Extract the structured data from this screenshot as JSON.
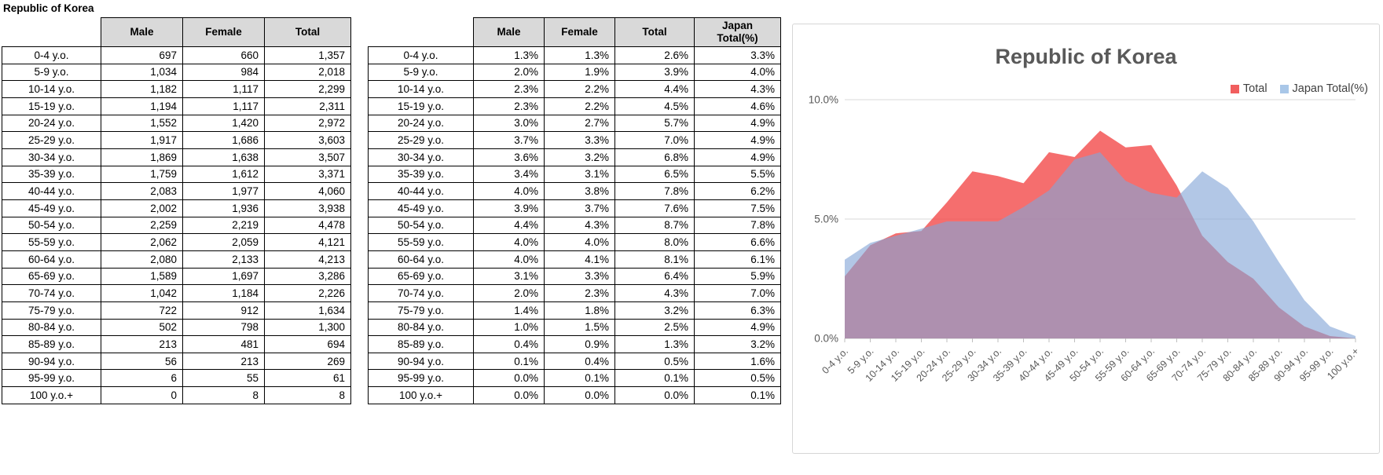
{
  "sheet_title": "Republic of Korea",
  "counts_table": {
    "headers": [
      "Male",
      "Female",
      "Total"
    ],
    "rows": [
      [
        "0-4 y.o.",
        "697",
        "660",
        "1,357"
      ],
      [
        "5-9 y.o.",
        "1,034",
        "984",
        "2,018"
      ],
      [
        "10-14 y.o.",
        "1,182",
        "1,117",
        "2,299"
      ],
      [
        "15-19 y.o.",
        "1,194",
        "1,117",
        "2,311"
      ],
      [
        "20-24 y.o.",
        "1,552",
        "1,420",
        "2,972"
      ],
      [
        "25-29 y.o.",
        "1,917",
        "1,686",
        "3,603"
      ],
      [
        "30-34 y.o.",
        "1,869",
        "1,638",
        "3,507"
      ],
      [
        "35-39 y.o.",
        "1,759",
        "1,612",
        "3,371"
      ],
      [
        "40-44 y.o.",
        "2,083",
        "1,977",
        "4,060"
      ],
      [
        "45-49 y.o.",
        "2,002",
        "1,936",
        "3,938"
      ],
      [
        "50-54 y.o.",
        "2,259",
        "2,219",
        "4,478"
      ],
      [
        "55-59 y.o.",
        "2,062",
        "2,059",
        "4,121"
      ],
      [
        "60-64 y.o.",
        "2,080",
        "2,133",
        "4,213"
      ],
      [
        "65-69 y.o.",
        "1,589",
        "1,697",
        "3,286"
      ],
      [
        "70-74 y.o.",
        "1,042",
        "1,184",
        "2,226"
      ],
      [
        "75-79 y.o.",
        "722",
        "912",
        "1,634"
      ],
      [
        "80-84 y.o.",
        "502",
        "798",
        "1,300"
      ],
      [
        "85-89 y.o.",
        "213",
        "481",
        "694"
      ],
      [
        "90-94 y.o.",
        "56",
        "213",
        "269"
      ],
      [
        "95-99 y.o.",
        "6",
        "55",
        "61"
      ],
      [
        "100 y.o.+",
        "0",
        "8",
        "8"
      ]
    ]
  },
  "percent_table": {
    "headers": [
      "Male",
      "Female",
      "Total"
    ],
    "japan_header_lines": [
      "Japan",
      "Total(%)"
    ],
    "rows": [
      [
        "0-4 y.o.",
        "1.3%",
        "1.3%",
        "2.6%",
        "3.3%"
      ],
      [
        "5-9 y.o.",
        "2.0%",
        "1.9%",
        "3.9%",
        "4.0%"
      ],
      [
        "10-14 y.o.",
        "2.3%",
        "2.2%",
        "4.4%",
        "4.3%"
      ],
      [
        "15-19 y.o.",
        "2.3%",
        "2.2%",
        "4.5%",
        "4.6%"
      ],
      [
        "20-24 y.o.",
        "3.0%",
        "2.7%",
        "5.7%",
        "4.9%"
      ],
      [
        "25-29 y.o.",
        "3.7%",
        "3.3%",
        "7.0%",
        "4.9%"
      ],
      [
        "30-34 y.o.",
        "3.6%",
        "3.2%",
        "6.8%",
        "4.9%"
      ],
      [
        "35-39 y.o.",
        "3.4%",
        "3.1%",
        "6.5%",
        "5.5%"
      ],
      [
        "40-44 y.o.",
        "4.0%",
        "3.8%",
        "7.8%",
        "6.2%"
      ],
      [
        "45-49 y.o.",
        "3.9%",
        "3.7%",
        "7.6%",
        "7.5%"
      ],
      [
        "50-54 y.o.",
        "4.4%",
        "4.3%",
        "8.7%",
        "7.8%"
      ],
      [
        "55-59 y.o.",
        "4.0%",
        "4.0%",
        "8.0%",
        "6.6%"
      ],
      [
        "60-64 y.o.",
        "4.0%",
        "4.1%",
        "8.1%",
        "6.1%"
      ],
      [
        "65-69 y.o.",
        "3.1%",
        "3.3%",
        "6.4%",
        "5.9%"
      ],
      [
        "70-74 y.o.",
        "2.0%",
        "2.3%",
        "4.3%",
        "7.0%"
      ],
      [
        "75-79 y.o.",
        "1.4%",
        "1.8%",
        "3.2%",
        "6.3%"
      ],
      [
        "80-84 y.o.",
        "1.0%",
        "1.5%",
        "2.5%",
        "4.9%"
      ],
      [
        "85-89 y.o.",
        "0.4%",
        "0.9%",
        "1.3%",
        "3.2%"
      ],
      [
        "90-94 y.o.",
        "0.1%",
        "0.4%",
        "0.5%",
        "1.6%"
      ],
      [
        "95-99 y.o.",
        "0.0%",
        "0.1%",
        "0.1%",
        "0.5%"
      ],
      [
        "100 y.o.+",
        "0.0%",
        "0.0%",
        "0.0%",
        "0.1%"
      ]
    ]
  },
  "chart_data": {
    "type": "area",
    "title": "Republic of Korea",
    "categories": [
      "0-4 y.o.",
      "5-9 y.o.",
      "10-14 y.o.",
      "15-19 y.o.",
      "20-24 y.o.",
      "25-29 y.o.",
      "30-34 y.o.",
      "35-39 y.o.",
      "40-44 y.o.",
      "45-49 y.o.",
      "50-54 y.o.",
      "55-59 y.o.",
      "60-64 y.o.",
      "65-69 y.o.",
      "70-74 y.o.",
      "75-79 y.o.",
      "80-84 y.o.",
      "85-89 y.o.",
      "90-94 y.o.",
      "95-99 y.o.",
      "100 y.o.+"
    ],
    "series": [
      {
        "name": "Total",
        "values": [
          2.6,
          3.9,
          4.4,
          4.5,
          5.7,
          7.0,
          6.8,
          6.5,
          7.8,
          7.6,
          8.7,
          8.0,
          8.1,
          6.4,
          4.3,
          3.2,
          2.5,
          1.3,
          0.5,
          0.1,
          0.0
        ],
        "fill": "rgba(242,74,74,0.80)",
        "legend_color": "#F15E5E"
      },
      {
        "name": "Japan Total(%)",
        "values": [
          3.3,
          4.0,
          4.3,
          4.6,
          4.9,
          4.9,
          4.9,
          5.5,
          6.2,
          7.5,
          7.8,
          6.6,
          6.1,
          5.9,
          7.0,
          6.3,
          4.9,
          3.2,
          1.6,
          0.5,
          0.1
        ],
        "fill": "rgba(130,165,215,0.62)",
        "legend_color": "#A9C7E8"
      }
    ],
    "xlabel": "",
    "ylabel": "",
    "ylim": [
      0,
      10
    ],
    "yticks": [
      {
        "v": 0,
        "label": "0.0%"
      },
      {
        "v": 5,
        "label": "5.0%"
      },
      {
        "v": 10,
        "label": "10.0%"
      }
    ],
    "grid": true,
    "legend_position": "top-right",
    "colors": {
      "gridline": "#D9D9D9",
      "axis": "#BFBFBF",
      "tick": "#BFBFBF",
      "text": "#595959"
    }
  }
}
